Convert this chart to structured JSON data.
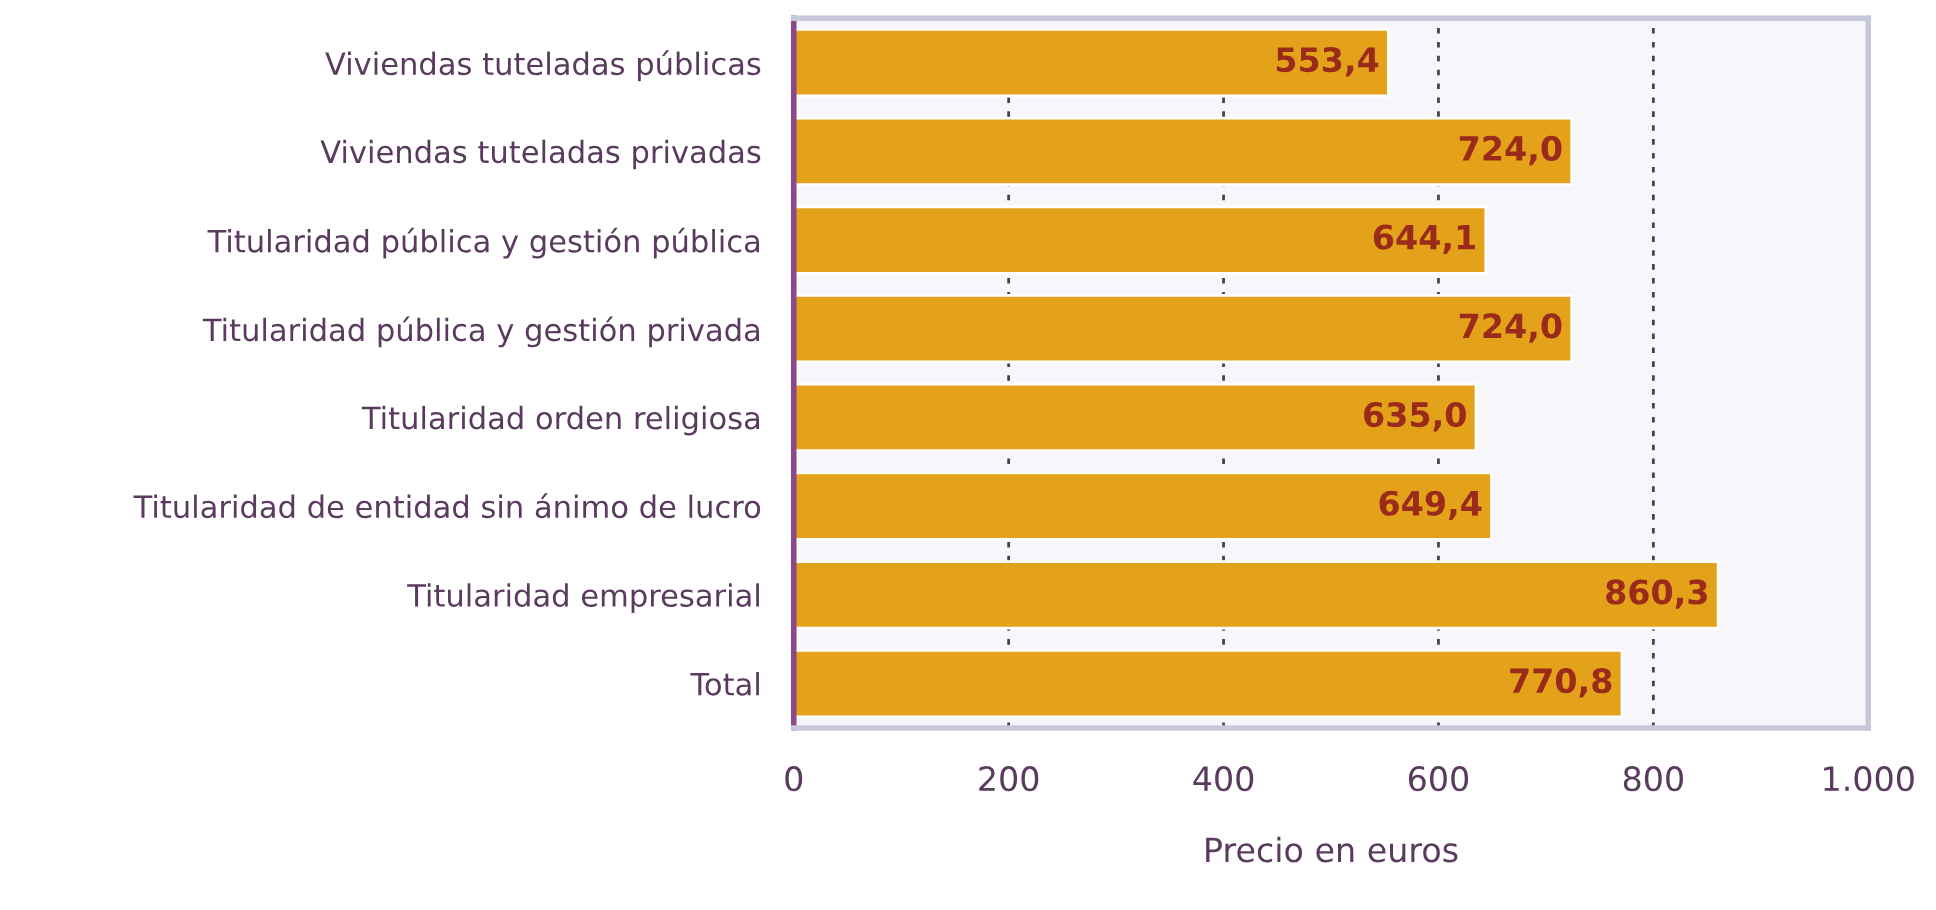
{
  "chart_data": {
    "type": "bar",
    "orientation": "horizontal",
    "xlabel": "Precio en euros",
    "categories": [
      "Viviendas tuteladas públicas",
      "Viviendas tuteladas privadas",
      "Titularidad pública y gestión pública",
      "Titularidad pública y gestión privada",
      "Titularidad orden religiosa",
      "Titularidad de entidad sin ánimo de lucro",
      "Titularidad empresarial",
      "Total"
    ],
    "values": [
      553.4,
      724.0,
      644.1,
      724.0,
      635.0,
      649.4,
      860.3,
      770.8
    ],
    "value_labels": [
      "553,4",
      "724,0",
      "644,1",
      "724,0",
      "635,0",
      "649,4",
      "860,3",
      "770,8"
    ],
    "color": "#e3a21a",
    "xlim": [
      0,
      1000
    ],
    "xticks": [
      0,
      200,
      400,
      600,
      800,
      {
        "value": 1000,
        "label": "1.000"
      }
    ],
    "grid": "x"
  }
}
